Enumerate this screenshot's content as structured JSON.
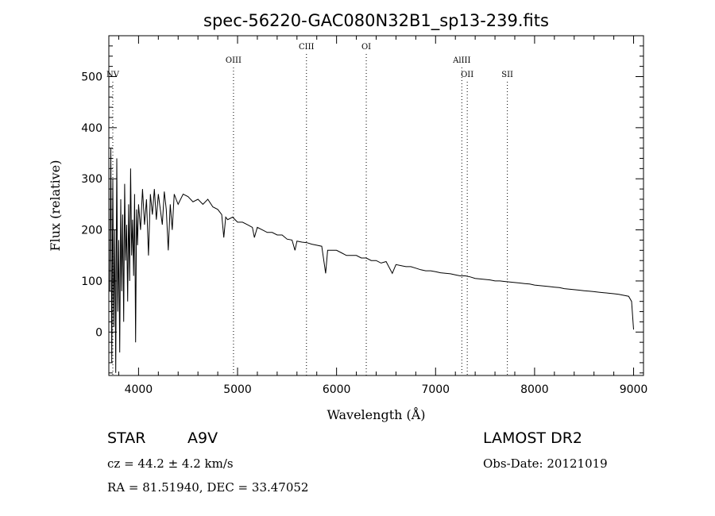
{
  "chart_data": {
    "type": "line",
    "title": "spec-56220-GAC080N32B1_sp13-239.fits",
    "xlabel": "Wavelength (Å)",
    "ylabel": "Flux (relative)",
    "xlim": [
      3700,
      9100
    ],
    "ylim": [
      -85,
      580
    ],
    "xticks": [
      4000,
      5000,
      6000,
      7000,
      8000,
      9000
    ],
    "yticks": [
      0,
      100,
      200,
      300,
      400,
      500
    ],
    "spectral_lines": [
      {
        "label": "NV",
        "x": 3740,
        "row": 2
      },
      {
        "label": "OIII",
        "x": 4959,
        "row": 1
      },
      {
        "label": "CIII",
        "x": 5696,
        "row": 0
      },
      {
        "label": "OI",
        "x": 6300,
        "row": 0
      },
      {
        "label": "AlIII",
        "x": 7265,
        "row": 1
      },
      {
        "label": "OII",
        "x": 7320,
        "row": 2
      },
      {
        "label": "SII",
        "x": 7725,
        "row": 2
      }
    ],
    "spectrum": [
      [
        3710,
        80
      ],
      [
        3720,
        360
      ],
      [
        3730,
        -60
      ],
      [
        3740,
        300
      ],
      [
        3750,
        10
      ],
      [
        3760,
        200
      ],
      [
        3770,
        -80
      ],
      [
        3780,
        340
      ],
      [
        3790,
        40
      ],
      [
        3800,
        180
      ],
      [
        3810,
        -40
      ],
      [
        3820,
        260
      ],
      [
        3830,
        80
      ],
      [
        3840,
        230
      ],
      [
        3850,
        20
      ],
      [
        3860,
        290
      ],
      [
        3870,
        140
      ],
      [
        3880,
        210
      ],
      [
        3890,
        60
      ],
      [
        3900,
        250
      ],
      [
        3910,
        100
      ],
      [
        3920,
        320
      ],
      [
        3930,
        150
      ],
      [
        3940,
        220
      ],
      [
        3950,
        110
      ],
      [
        3960,
        270
      ],
      [
        3970,
        -20
      ],
      [
        3980,
        240
      ],
      [
        3990,
        170
      ],
      [
        4000,
        250
      ],
      [
        4020,
        200
      ],
      [
        4040,
        280
      ],
      [
        4060,
        210
      ],
      [
        4080,
        260
      ],
      [
        4100,
        150
      ],
      [
        4120,
        270
      ],
      [
        4140,
        230
      ],
      [
        4160,
        280
      ],
      [
        4180,
        220
      ],
      [
        4200,
        270
      ],
      [
        4220,
        240
      ],
      [
        4240,
        210
      ],
      [
        4260,
        275
      ],
      [
        4280,
        240
      ],
      [
        4300,
        160
      ],
      [
        4320,
        250
      ],
      [
        4340,
        200
      ],
      [
        4360,
        270
      ],
      [
        4380,
        260
      ],
      [
        4400,
        250
      ],
      [
        4450,
        270
      ],
      [
        4500,
        265
      ],
      [
        4550,
        255
      ],
      [
        4600,
        260
      ],
      [
        4650,
        250
      ],
      [
        4700,
        260
      ],
      [
        4750,
        245
      ],
      [
        4800,
        240
      ],
      [
        4840,
        230
      ],
      [
        4861,
        185
      ],
      [
        4880,
        225
      ],
      [
        4900,
        220
      ],
      [
        4950,
        225
      ],
      [
        5000,
        215
      ],
      [
        5050,
        215
      ],
      [
        5100,
        210
      ],
      [
        5150,
        205
      ],
      [
        5170,
        185
      ],
      [
        5200,
        205
      ],
      [
        5250,
        200
      ],
      [
        5300,
        195
      ],
      [
        5350,
        195
      ],
      [
        5400,
        190
      ],
      [
        5450,
        190
      ],
      [
        5500,
        182
      ],
      [
        5550,
        180
      ],
      [
        5580,
        160
      ],
      [
        5600,
        178
      ],
      [
        5650,
        176
      ],
      [
        5700,
        175
      ],
      [
        5750,
        172
      ],
      [
        5800,
        170
      ],
      [
        5850,
        168
      ],
      [
        5890,
        115
      ],
      [
        5910,
        160
      ],
      [
        5950,
        160
      ],
      [
        6000,
        160
      ],
      [
        6050,
        155
      ],
      [
        6100,
        150
      ],
      [
        6150,
        150
      ],
      [
        6200,
        150
      ],
      [
        6250,
        145
      ],
      [
        6300,
        145
      ],
      [
        6350,
        140
      ],
      [
        6400,
        140
      ],
      [
        6450,
        135
      ],
      [
        6500,
        138
      ],
      [
        6563,
        115
      ],
      [
        6600,
        132
      ],
      [
        6650,
        130
      ],
      [
        6700,
        128
      ],
      [
        6750,
        128
      ],
      [
        6800,
        125
      ],
      [
        6850,
        122
      ],
      [
        6900,
        120
      ],
      [
        6950,
        120
      ],
      [
        7000,
        118
      ],
      [
        7050,
        116
      ],
      [
        7100,
        115
      ],
      [
        7150,
        114
      ],
      [
        7200,
        112
      ],
      [
        7250,
        110
      ],
      [
        7300,
        110
      ],
      [
        7350,
        108
      ],
      [
        7400,
        105
      ],
      [
        7450,
        104
      ],
      [
        7500,
        103
      ],
      [
        7550,
        102
      ],
      [
        7600,
        100
      ],
      [
        7650,
        100
      ],
      [
        7700,
        99
      ],
      [
        7750,
        98
      ],
      [
        7800,
        97
      ],
      [
        7850,
        96
      ],
      [
        7900,
        95
      ],
      [
        7950,
        94
      ],
      [
        8000,
        92
      ],
      [
        8050,
        91
      ],
      [
        8100,
        90
      ],
      [
        8150,
        89
      ],
      [
        8200,
        88
      ],
      [
        8250,
        87
      ],
      [
        8300,
        85
      ],
      [
        8350,
        84
      ],
      [
        8400,
        83
      ],
      [
        8450,
        82
      ],
      [
        8500,
        81
      ],
      [
        8550,
        80
      ],
      [
        8600,
        79
      ],
      [
        8650,
        78
      ],
      [
        8700,
        77
      ],
      [
        8750,
        76
      ],
      [
        8800,
        75
      ],
      [
        8850,
        74
      ],
      [
        8900,
        72
      ],
      [
        8950,
        70
      ],
      [
        8980,
        60
      ],
      [
        9000,
        5
      ]
    ]
  },
  "info": {
    "class": "STAR",
    "subclass": "A9V",
    "survey": "LAMOST DR2",
    "cz": "cz = 44.2 ± 4.2 km/s",
    "obs_date": "Obs-Date: 20121019",
    "coords": "RA =  81.51940, DEC =  33.47052"
  }
}
